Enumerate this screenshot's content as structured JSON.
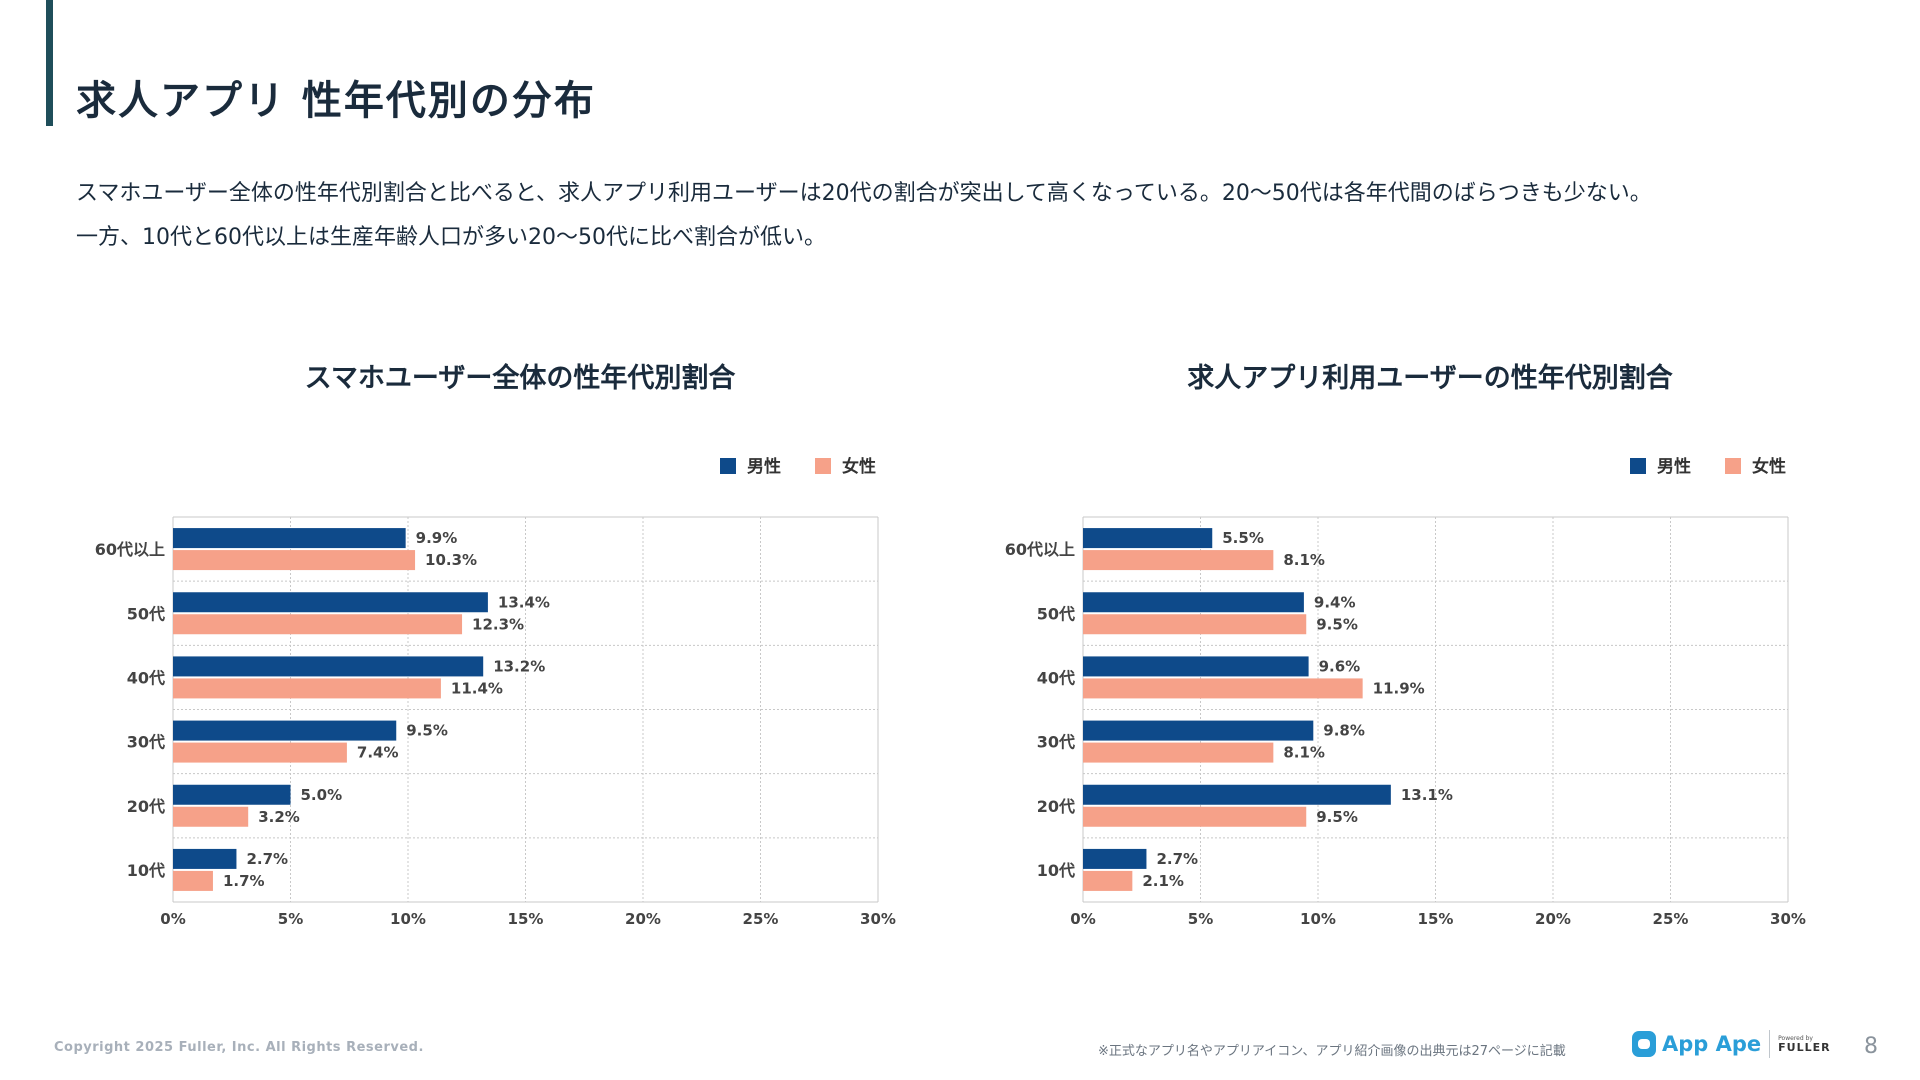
{
  "header": {
    "title": "求人アプリ 性年代別の分布"
  },
  "description": {
    "line1": "スマホユーザー全体の性年代別割合と比べると、求人アプリ利用ユーザーは20代の割合が突出して高くなっている。20〜50代は各年代間のばらつきも少ない。",
    "line2": "一方、10代と60代以上は生産年齢人口が多い20〜50代に比べ割合が低い。"
  },
  "colors": {
    "male": "#0e4a8a",
    "female": "#f6a189",
    "grid": "#c8c8c8",
    "text": "#444444"
  },
  "chart_data": [
    {
      "type": "bar",
      "orientation": "horizontal",
      "title": "スマホユーザー全体の性年代別割合",
      "categories": [
        "60代以上",
        "50代",
        "40代",
        "30代",
        "20代",
        "10代"
      ],
      "series": [
        {
          "name": "男性",
          "values": [
            9.9,
            13.4,
            13.2,
            9.5,
            5.0,
            2.7
          ],
          "labels": [
            "9.9%",
            "13.4%",
            "13.2%",
            "9.5%",
            "5.0%",
            "2.7%"
          ]
        },
        {
          "name": "女性",
          "values": [
            10.3,
            12.3,
            11.4,
            7.4,
            3.2,
            1.7
          ],
          "labels": [
            "10.3%",
            "12.3%",
            "11.4%",
            "7.4%",
            "3.2%",
            "1.7%"
          ]
        }
      ],
      "xlim": [
        0,
        30
      ],
      "ticks": [
        "0%",
        "5%",
        "10%",
        "15%",
        "20%",
        "25%",
        "30%"
      ],
      "legend": "top-right",
      "grid": true
    },
    {
      "type": "bar",
      "orientation": "horizontal",
      "title": "求人アプリ利用ユーザーの性年代別割合",
      "categories": [
        "60代以上",
        "50代",
        "40代",
        "30代",
        "20代",
        "10代"
      ],
      "series": [
        {
          "name": "男性",
          "values": [
            5.5,
            9.4,
            9.6,
            9.8,
            13.1,
            2.7
          ],
          "labels": [
            "5.5%",
            "9.4%",
            "9.6%",
            "9.8%",
            "13.1%",
            "2.7%"
          ]
        },
        {
          "name": "女性",
          "values": [
            8.1,
            9.5,
            11.9,
            8.1,
            9.5,
            2.1
          ],
          "labels": [
            "8.1%",
            "9.5%",
            "11.9%",
            "8.1%",
            "9.5%",
            "2.1%"
          ]
        }
      ],
      "xlim": [
        0,
        30
      ],
      "ticks": [
        "0%",
        "5%",
        "10%",
        "15%",
        "20%",
        "25%",
        "30%"
      ],
      "legend": "top-right",
      "grid": true
    }
  ],
  "footer": {
    "copyright": "Copyright 2025 Fuller, Inc. All Rights Reserved.",
    "note": "※正式なアプリ名やアプリアイコン、アプリ紹介画像の出典元は27ページに記載",
    "logo_text": "App Ape",
    "logo_powered": "Powered by",
    "logo_company": "FULLER",
    "page_number": "8"
  }
}
